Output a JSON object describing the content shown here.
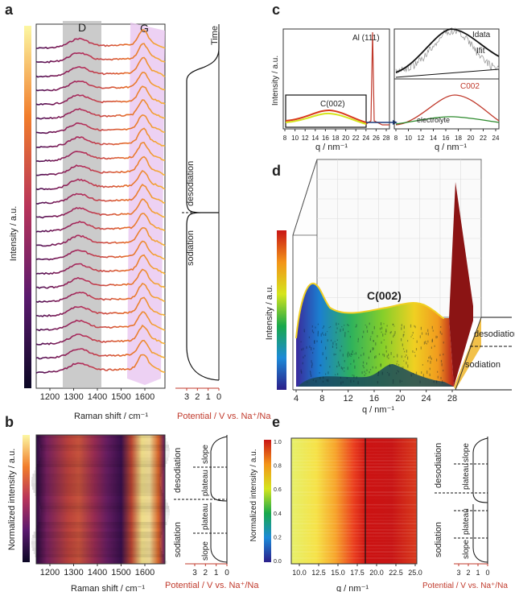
{
  "panels": {
    "a": "a",
    "b": "b",
    "c": "c",
    "d": "d",
    "e": "e"
  },
  "a": {
    "ylabel": "Intensity / a.u.",
    "xlabel": "Raman shift / cm⁻¹",
    "xticks": [
      "1200",
      "1300",
      "1400",
      "1500",
      "1600"
    ],
    "band_D": "D",
    "band_G": "G",
    "time": "Time",
    "desodiation": "desodiation",
    "sodiation": "sodiation",
    "pot_label": "Potential / V vs. Na⁺/Na",
    "pot_ticks": [
      "3",
      "2",
      "1",
      "0"
    ]
  },
  "b": {
    "ylabel": "Normalized intensity / a.u.",
    "xlabel": "Raman shift / cm⁻¹",
    "xticks": [
      "1200",
      "1300",
      "1400",
      "1500",
      "1600"
    ],
    "pot_label": "Potential / V vs. Na⁺/Na",
    "pot_ticks": [
      "3",
      "2",
      "1",
      "0"
    ],
    "desodiation": "desodiation",
    "sodiation": "sodiation",
    "slope": "slope",
    "plateau": "plateau"
  },
  "c": {
    "ylabel": "Intensity / a.u.",
    "xlabel": "q / nm⁻¹",
    "xticks_left": [
      "8",
      "10",
      "12",
      "14",
      "16",
      "18",
      "20",
      "22",
      "24",
      "26",
      "28"
    ],
    "xticks_right": [
      "8",
      "10",
      "12",
      "14",
      "16",
      "18",
      "20",
      "22",
      "24"
    ],
    "al": "Al (111)",
    "c002": "C(002)",
    "idata": "Idata",
    "ifit": "Ifit",
    "c002_red": "C002",
    "electrolyte": "electrolyte"
  },
  "d": {
    "ylabel": "Intensity / a.u.",
    "xlabel": "q / nm⁻¹",
    "xticks": [
      "4",
      "8",
      "12",
      "16",
      "20",
      "24",
      "28"
    ],
    "c002": "C(002)",
    "desodiation": "desodiation",
    "sodiation": "sodiation"
  },
  "e": {
    "ylabel": "Normalized intensity / a.u.",
    "xlabel": "q / nm⁻¹",
    "xticks": [
      "10.0",
      "12.5",
      "15.0",
      "17.5",
      "20.0",
      "22.5",
      "25.0"
    ],
    "cbar_ticks": [
      "1.0",
      "0.8",
      "0.6",
      "0.4",
      "0.2",
      "0.0"
    ],
    "pot_label": "Potential / V vs. Na⁺/Na",
    "pot_ticks": [
      "3",
      "2",
      "1",
      "0"
    ],
    "desodiation": "desodiation",
    "sodiation": "sodiation",
    "slope": "slope",
    "plateau": "plateau"
  },
  "chart_data": [
    {
      "type": "line",
      "title": "a",
      "xlabel": "Raman shift / cm⁻¹",
      "ylabel": "Intensity / a.u.",
      "xlim": [
        1130,
        1650
      ],
      "series_count": 24,
      "bands": [
        {
          "name": "D",
          "center": 1340
        },
        {
          "name": "G",
          "center": 1590
        }
      ]
    },
    {
      "type": "heatmap",
      "title": "b",
      "xlabel": "Raman shift / cm⁻¹",
      "ylabel": "Normalized intensity / a.u.",
      "xlim": [
        1130,
        1650
      ]
    },
    {
      "type": "line",
      "title": "c",
      "xlabel": "q / nm⁻¹",
      "ylabel": "Intensity / a.u.",
      "xlim": [
        8,
        29
      ],
      "peaks": [
        {
          "name": "C(002)",
          "q": 18
        },
        {
          "name": "Al (111)",
          "q": 26.8
        }
      ]
    },
    {
      "type": "area",
      "title": "d",
      "xlabel": "q / nm⁻¹",
      "ylabel": "Intensity / a.u.",
      "xlim": [
        4,
        28
      ],
      "peak": {
        "name": "C(002)",
        "q": 20
      }
    },
    {
      "type": "heatmap",
      "title": "e",
      "xlabel": "q / nm⁻¹",
      "ylabel": "Normalized intensity / a.u.",
      "xlim": [
        8,
        25
      ],
      "clim": [
        0.0,
        1.0
      ],
      "marker_q": 18
    }
  ]
}
